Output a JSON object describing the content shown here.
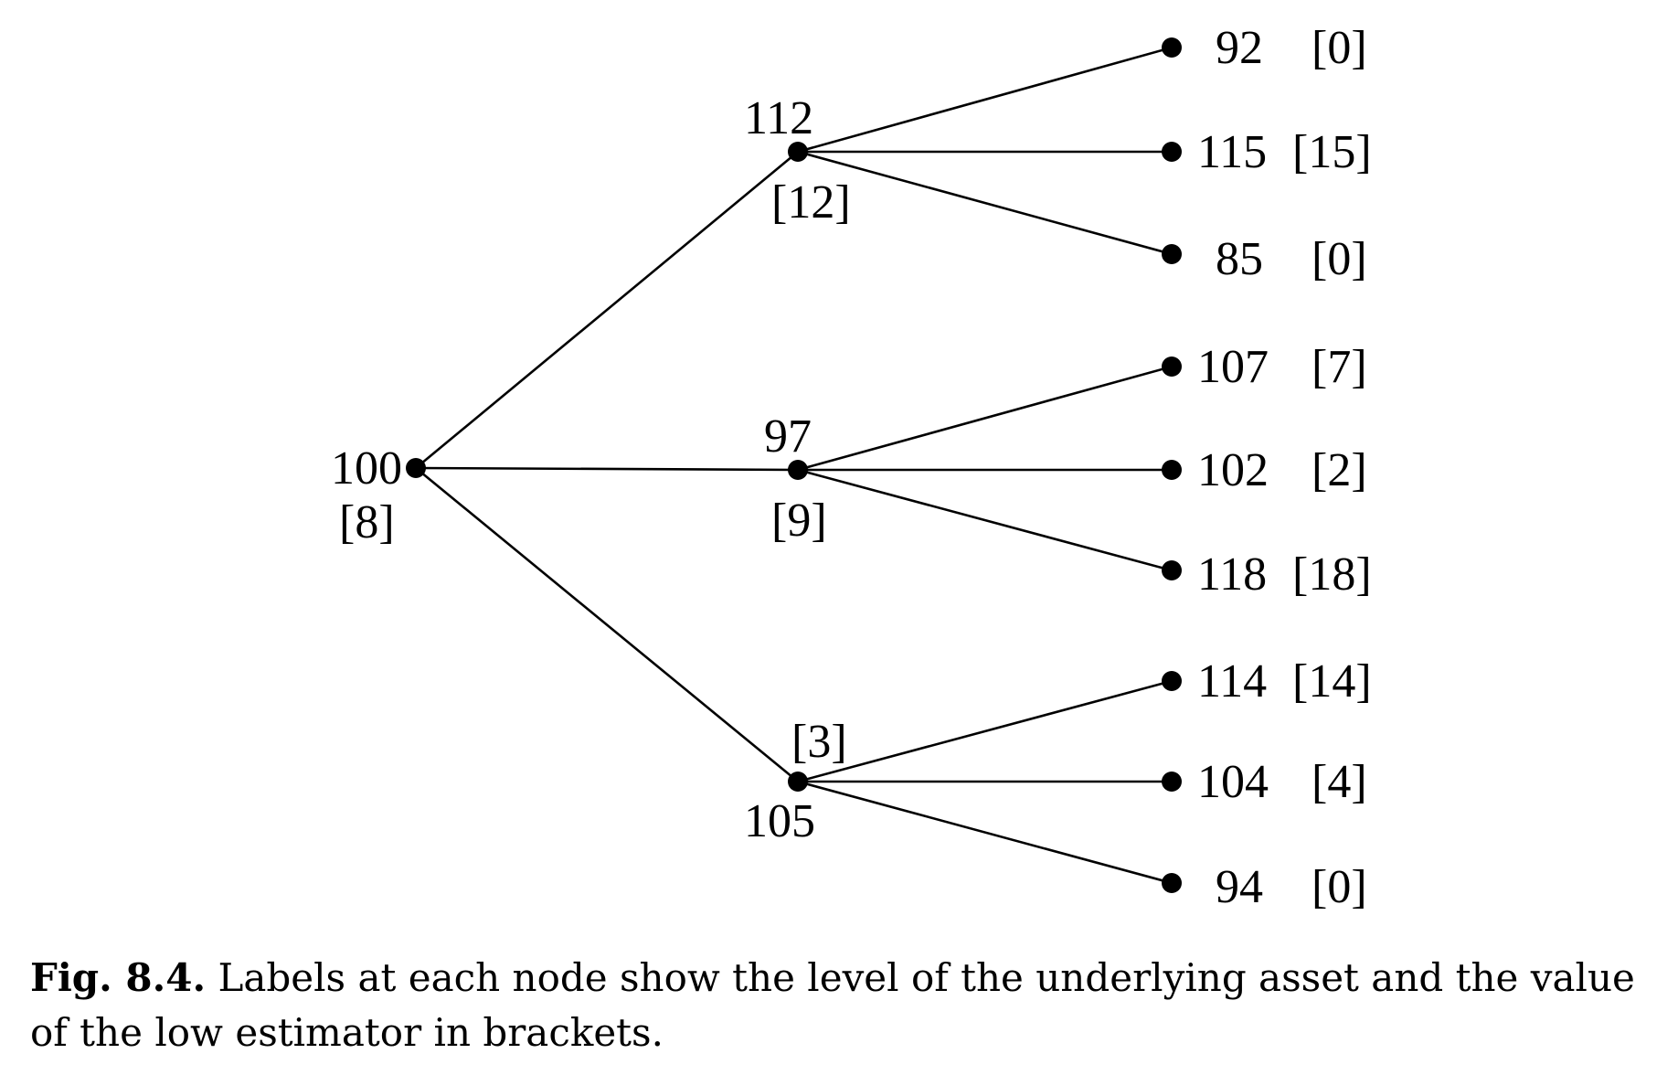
{
  "tree": {
    "root": {
      "value": "100",
      "estimate": "[8]"
    },
    "children": [
      {
        "value": "112",
        "estimate": "[12]",
        "leaves": [
          {
            "value": "92",
            "estimate": "[0]"
          },
          {
            "value": "115",
            "estimate": "[15]"
          },
          {
            "value": "85",
            "estimate": "[0]"
          }
        ]
      },
      {
        "value": "97",
        "estimate": "[9]",
        "leaves": [
          {
            "value": "107",
            "estimate": "[7]"
          },
          {
            "value": "102",
            "estimate": "[2]"
          },
          {
            "value": "118",
            "estimate": "[18]"
          }
        ]
      },
      {
        "value": "105",
        "estimate": "[3]",
        "leaves": [
          {
            "value": "114",
            "estimate": "[14]"
          },
          {
            "value": "104",
            "estimate": "[4]"
          },
          {
            "value": "94",
            "estimate": "[0]"
          }
        ]
      }
    ]
  },
  "caption": {
    "label": "Fig. 8.4.",
    "text": "Labels at each node show the level of the underlying asset and the value of the low estimator in brackets."
  }
}
